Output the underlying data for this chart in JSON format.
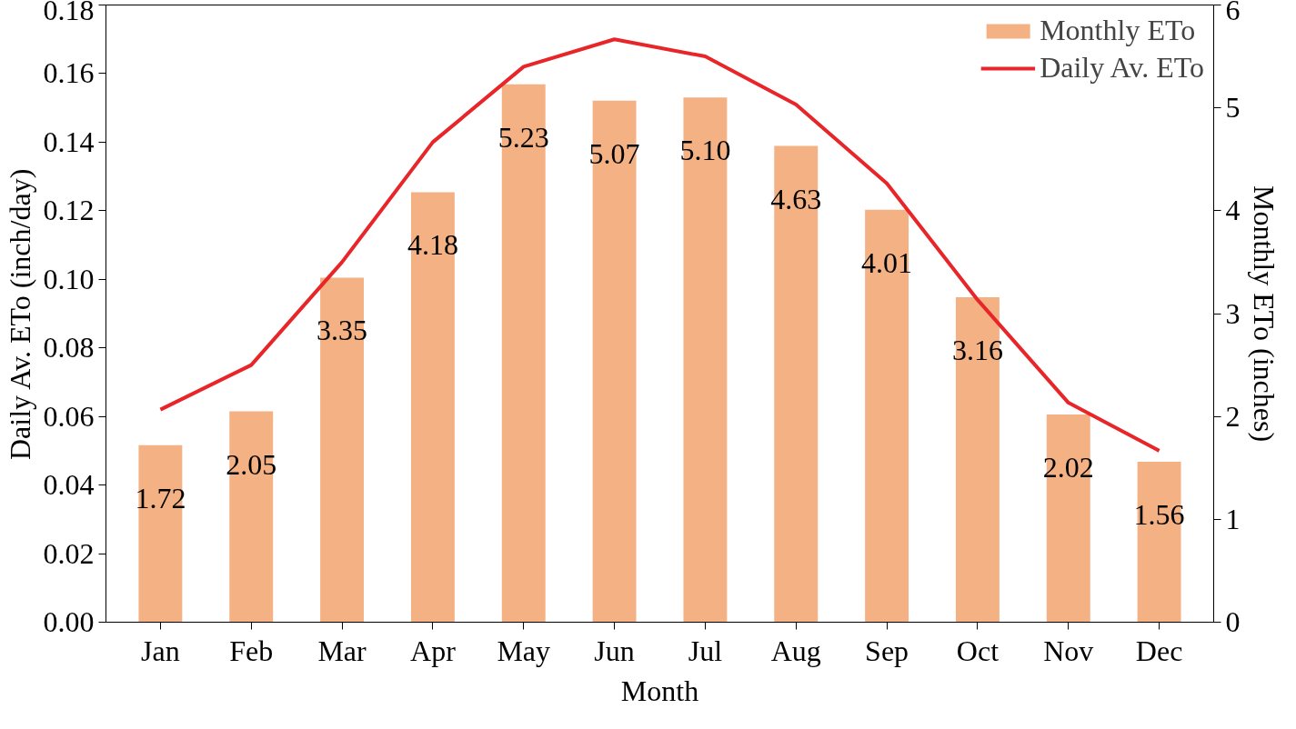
{
  "chart_data": {
    "type": "bar",
    "xlabel": "Month",
    "ylabel": "Daily Av. ETo (inch/day)",
    "y2label": "Monthly ETo (inches)",
    "categories": [
      "Jan",
      "Feb",
      "Mar",
      "Apr",
      "May",
      "Jun",
      "Jul",
      "Aug",
      "Sep",
      "Oct",
      "Nov",
      "Dec"
    ],
    "series": [
      {
        "name": "Monthly ETo",
        "axis": "y2",
        "color": "#f4b183",
        "values": [
          1.72,
          2.05,
          3.35,
          4.18,
          5.23,
          5.07,
          5.1,
          4.63,
          4.01,
          3.16,
          2.02,
          1.56
        ],
        "value_labels": [
          "1.72",
          "2.05",
          "3.35",
          "4.18",
          "5.23",
          "5.07",
          "5.10",
          "4.63",
          "4.01",
          "3.16",
          "2.02",
          "1.56"
        ]
      },
      {
        "name": "Daily Av. ETo",
        "type": "line",
        "axis": "y",
        "color": "#e8262a",
        "values": [
          0.062,
          0.075,
          0.105,
          0.14,
          0.162,
          0.17,
          0.165,
          0.151,
          0.128,
          0.094,
          0.064,
          0.05
        ]
      }
    ],
    "ylim": [
      0,
      0.18
    ],
    "yticks": [
      {
        "value": 0,
        "label": "0.00"
      },
      {
        "value": 0.02,
        "label": "0.02"
      },
      {
        "value": 0.04,
        "label": "0.04"
      },
      {
        "value": 0.06,
        "label": "0.06"
      },
      {
        "value": 0.08,
        "label": "0.08"
      },
      {
        "value": 0.1,
        "label": "0.10"
      },
      {
        "value": 0.12,
        "label": "0.12"
      },
      {
        "value": 0.14,
        "label": "0.14"
      },
      {
        "value": 0.16,
        "label": "0.16"
      },
      {
        "value": 0.18,
        "label": "0.18"
      }
    ],
    "y2lim": [
      0,
      6
    ],
    "y2ticks": [
      0,
      1,
      2,
      3,
      4,
      5,
      6
    ],
    "legend": "top right",
    "grid": false,
    "line_style": "solid",
    "marker": "none"
  }
}
